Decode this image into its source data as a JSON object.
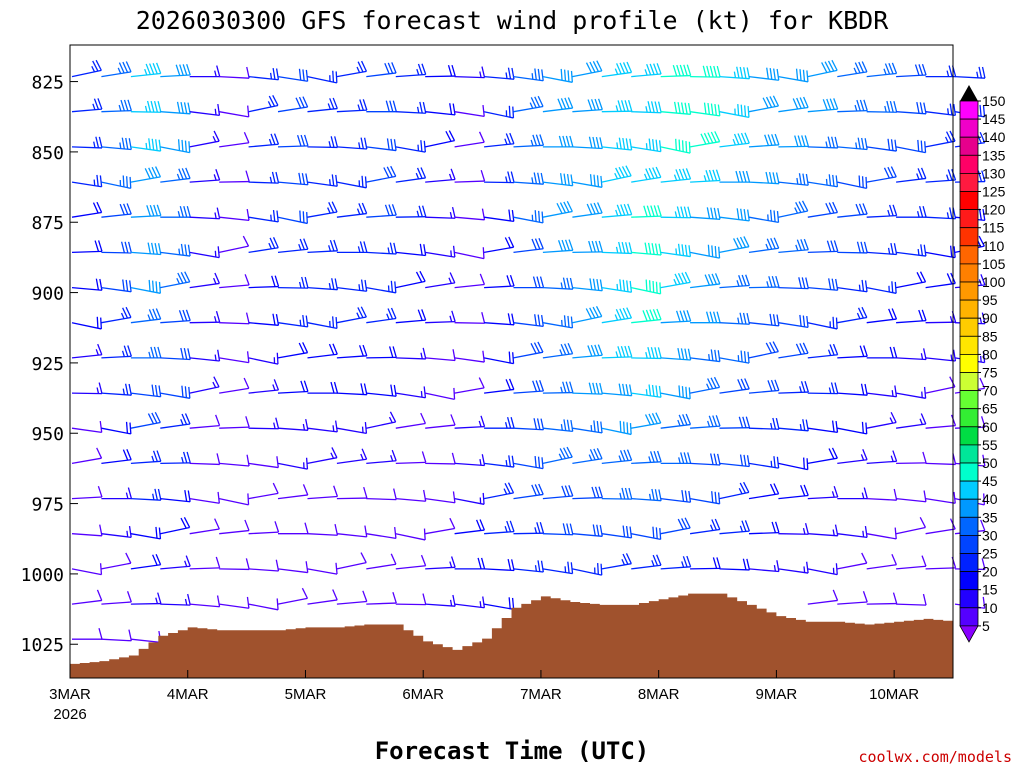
{
  "chart_data": {
    "type": "wind-profile",
    "title": "2026030300 GFS forecast wind profile (kt) for KBDR",
    "xlabel": "Forecast Time (UTC)",
    "credit": "coolwx.com/models",
    "x_ticks": [
      "3MAR",
      "4MAR",
      "5MAR",
      "6MAR",
      "7MAR",
      "8MAR",
      "9MAR",
      "10MAR"
    ],
    "x_year": "2026",
    "y_ticks": [
      825,
      850,
      875,
      900,
      925,
      950,
      975,
      1000,
      1025
    ],
    "y_range_hpa": [
      812,
      1037
    ],
    "x_range_hours": [
      0,
      180
    ],
    "colorbar": {
      "labels": [
        150,
        145,
        140,
        135,
        130,
        125,
        120,
        115,
        110,
        105,
        100,
        95,
        90,
        85,
        80,
        75,
        70,
        65,
        60,
        55,
        50,
        45,
        40,
        35,
        30,
        25,
        20,
        15,
        10,
        5
      ],
      "colors": [
        "#ff00ff",
        "#f000c8",
        "#e6008c",
        "#ff0066",
        "#ff1a40",
        "#ff0000",
        "#ff1a1a",
        "#ff3300",
        "#ff6600",
        "#ff8000",
        "#ff9900",
        "#ffb300",
        "#ffcc00",
        "#ffe600",
        "#ffff00",
        "#ccff33",
        "#66ff33",
        "#33ee33",
        "#00dd44",
        "#00e699",
        "#00ffcc",
        "#00ccff",
        "#0099ff",
        "#0066ff",
        "#0044ff",
        "#0022ff",
        "#0000ff",
        "#2200ff",
        "#5500ff",
        "#8800ff"
      ]
    },
    "surface_pressure": {
      "hours": [
        0,
        6,
        12,
        18,
        24,
        30,
        36,
        42,
        48,
        54,
        60,
        66,
        72,
        78,
        84,
        90,
        96,
        102,
        108,
        114,
        120,
        126,
        132,
        138,
        144,
        150,
        156,
        162,
        168,
        174,
        180
      ],
      "hpa": [
        1032,
        1031,
        1029,
        1022,
        1019,
        1020,
        1020,
        1020,
        1019,
        1019,
        1018,
        1018,
        1024,
        1027,
        1023,
        1012,
        1008,
        1010,
        1011,
        1011,
        1009,
        1007,
        1007,
        1011,
        1015,
        1017,
        1017,
        1018,
        1017,
        1016,
        1017
      ]
    },
    "wind_speed_grid_kt": {
      "note": "rows = pressure levels 825..1025 step 12.5 hPa, cols = every 6 h from 0 to 180 h",
      "levels_hpa": [
        825,
        837.5,
        850,
        862.5,
        875,
        887.5,
        900,
        912.5,
        925,
        937.5,
        950,
        962.5,
        975,
        987.5,
        1000,
        1012.5,
        1025
      ],
      "speeds": [
        [
          25,
          35,
          45,
          40,
          15,
          12,
          25,
          30,
          25,
          25,
          30,
          25,
          20,
          15,
          25,
          35,
          40,
          40,
          45,
          45,
          48,
          48,
          45,
          40,
          40,
          40,
          35,
          35,
          30,
          25,
          25
        ],
        [
          25,
          35,
          45,
          40,
          15,
          10,
          25,
          30,
          25,
          25,
          30,
          25,
          20,
          10,
          25,
          35,
          40,
          40,
          45,
          45,
          48,
          48,
          45,
          40,
          40,
          40,
          35,
          35,
          30,
          25,
          25
        ],
        [
          25,
          35,
          45,
          40,
          15,
          10,
          25,
          30,
          25,
          25,
          30,
          25,
          20,
          10,
          25,
          35,
          40,
          40,
          45,
          45,
          48,
          48,
          45,
          40,
          40,
          35,
          35,
          30,
          30,
          25,
          25
        ],
        [
          25,
          35,
          40,
          35,
          15,
          10,
          25,
          30,
          25,
          25,
          30,
          25,
          15,
          10,
          25,
          35,
          40,
          40,
          45,
          45,
          45,
          45,
          40,
          40,
          35,
          35,
          30,
          30,
          25,
          25,
          25
        ],
        [
          20,
          30,
          40,
          35,
          15,
          10,
          25,
          30,
          25,
          25,
          30,
          25,
          15,
          10,
          20,
          35,
          40,
          40,
          45,
          48,
          45,
          40,
          40,
          35,
          35,
          30,
          30,
          25,
          25,
          25,
          20
        ],
        [
          20,
          30,
          40,
          35,
          15,
          10,
          25,
          25,
          25,
          25,
          25,
          20,
          15,
          10,
          20,
          30,
          40,
          40,
          45,
          48,
          45,
          40,
          40,
          35,
          35,
          30,
          30,
          25,
          25,
          20,
          20
        ],
        [
          20,
          30,
          40,
          35,
          15,
          10,
          20,
          25,
          25,
          25,
          25,
          20,
          15,
          10,
          20,
          30,
          35,
          40,
          45,
          48,
          45,
          40,
          35,
          35,
          30,
          30,
          25,
          25,
          20,
          20,
          15
        ],
        [
          20,
          25,
          35,
          30,
          15,
          10,
          20,
          25,
          25,
          25,
          25,
          20,
          15,
          10,
          20,
          30,
          35,
          40,
          45,
          48,
          40,
          40,
          35,
          30,
          30,
          25,
          25,
          20,
          20,
          15,
          15
        ],
        [
          15,
          25,
          35,
          30,
          15,
          10,
          15,
          20,
          20,
          20,
          20,
          15,
          10,
          10,
          20,
          30,
          35,
          40,
          45,
          45,
          40,
          35,
          35,
          30,
          30,
          25,
          20,
          20,
          15,
          15,
          15
        ],
        [
          15,
          25,
          30,
          30,
          15,
          10,
          15,
          20,
          20,
          20,
          20,
          15,
          10,
          10,
          20,
          30,
          35,
          40,
          40,
          45,
          40,
          35,
          30,
          30,
          25,
          25,
          20,
          15,
          15,
          10,
          10
        ],
        [
          10,
          20,
          30,
          25,
          10,
          10,
          15,
          15,
          15,
          15,
          15,
          10,
          10,
          15,
          25,
          30,
          35,
          35,
          40,
          40,
          35,
          35,
          30,
          25,
          25,
          20,
          20,
          15,
          15,
          10,
          10
        ],
        [
          10,
          20,
          25,
          25,
          10,
          10,
          10,
          15,
          15,
          15,
          15,
          10,
          10,
          15,
          25,
          30,
          35,
          35,
          35,
          35,
          35,
          30,
          30,
          25,
          20,
          20,
          15,
          15,
          10,
          10,
          10
        ],
        [
          10,
          15,
          25,
          20,
          10,
          10,
          10,
          10,
          10,
          10,
          10,
          10,
          10,
          15,
          25,
          30,
          30,
          30,
          35,
          35,
          30,
          30,
          25,
          20,
          20,
          15,
          15,
          10,
          10,
          10,
          10
        ],
        [
          10,
          15,
          20,
          20,
          10,
          10,
          10,
          10,
          10,
          10,
          10,
          10,
          10,
          20,
          25,
          25,
          30,
          30,
          30,
          30,
          30,
          25,
          25,
          20,
          15,
          15,
          15,
          10,
          10,
          10,
          10
        ],
        [
          10,
          10,
          20,
          15,
          10,
          10,
          10,
          10,
          10,
          10,
          10,
          10,
          15,
          20,
          20,
          25,
          25,
          25,
          25,
          25,
          25,
          20,
          20,
          15,
          15,
          15,
          10,
          10,
          10,
          10,
          10
        ],
        [
          10,
          10,
          15,
          15,
          10,
          10,
          10,
          10,
          10,
          10,
          10,
          10,
          15,
          15,
          20,
          20,
          20,
          20,
          20,
          20,
          20,
          20,
          15,
          15,
          15,
          10,
          10,
          10,
          10,
          10,
          10
        ],
        [
          10,
          10,
          10,
          10,
          10,
          10,
          10,
          10,
          10,
          10,
          10,
          10,
          10,
          10,
          15,
          15,
          15,
          15,
          15,
          15,
          15,
          15,
          15,
          10,
          10,
          10,
          10,
          10,
          10,
          10,
          10
        ]
      ]
    }
  }
}
